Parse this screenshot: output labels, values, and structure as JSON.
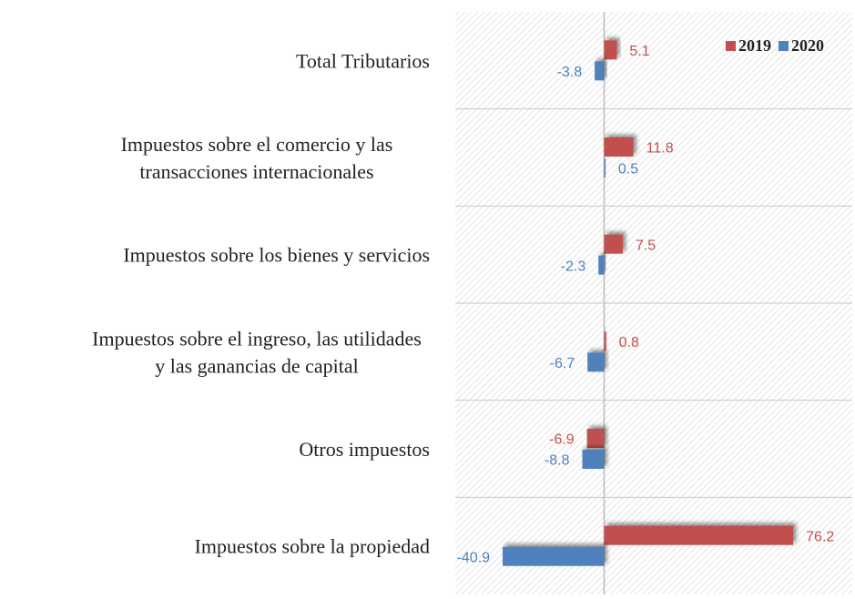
{
  "chart_data": {
    "type": "hbar",
    "categories": [
      "Total Tributarios",
      "Impuestos sobre el comercio y las\ntransacciones internacionales",
      "Impuestos sobre los bienes y servicios",
      "Impuestos sobre el ingreso, las utilidades\ny las ganancias de capital",
      "Otros impuestos",
      "Impuestos sobre la propiedad"
    ],
    "series": [
      {
        "name": "2019",
        "color": "#c0504d",
        "values": [
          5.1,
          11.8,
          7.5,
          0.8,
          -6.9,
          76.2
        ]
      },
      {
        "name": "2020",
        "color": "#4f81bd",
        "values": [
          -3.8,
          0.5,
          -2.3,
          -6.7,
          -8.8,
          -40.9
        ]
      }
    ],
    "xlim": [
      -60,
      100
    ],
    "legend": "top-right"
  }
}
